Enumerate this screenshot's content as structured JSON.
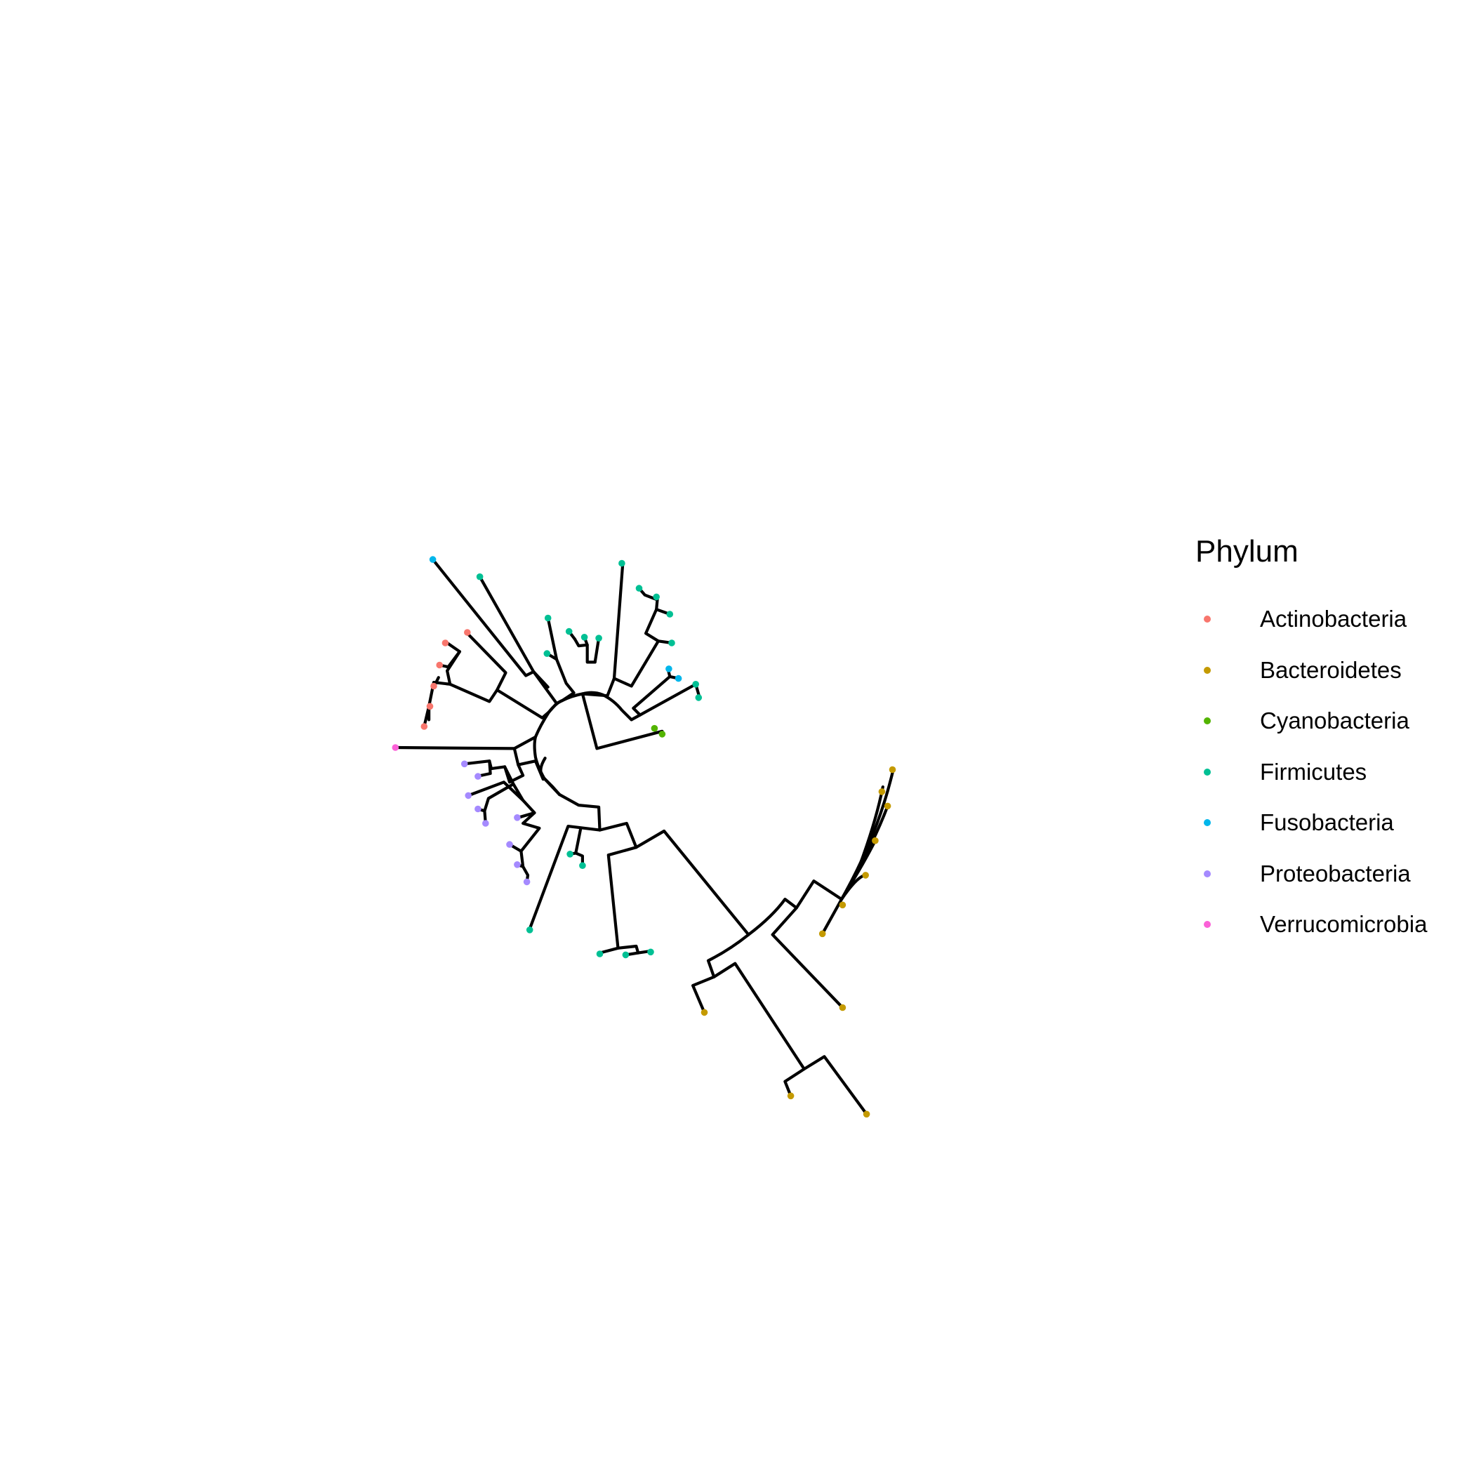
{
  "legend": {
    "title": "Phylum",
    "items": [
      {
        "label": "Actinobacteria",
        "color": "#F8766D"
      },
      {
        "label": "Bacteroidetes",
        "color": "#C49A00"
      },
      {
        "label": "Cyanobacteria",
        "color": "#53B400"
      },
      {
        "label": "Firmicutes",
        "color": "#00C094"
      },
      {
        "label": "Fusobacteria",
        "color": "#00B6EB"
      },
      {
        "label": "Proteobacteria",
        "color": "#A58AFF"
      },
      {
        "label": "Verrucomicrobia",
        "color": "#FB61D7"
      }
    ]
  },
  "tree": {
    "layout": "circular",
    "branch_color": "#000000",
    "tip_count": 60,
    "tips_by_phylum": {
      "Actinobacteria": 7,
      "Bacteroidetes": 11,
      "Cyanobacteria": 2,
      "Firmicutes": 24,
      "Fusobacteria": 3,
      "Proteobacteria": 12,
      "Verrucomicrobia": 1
    }
  }
}
